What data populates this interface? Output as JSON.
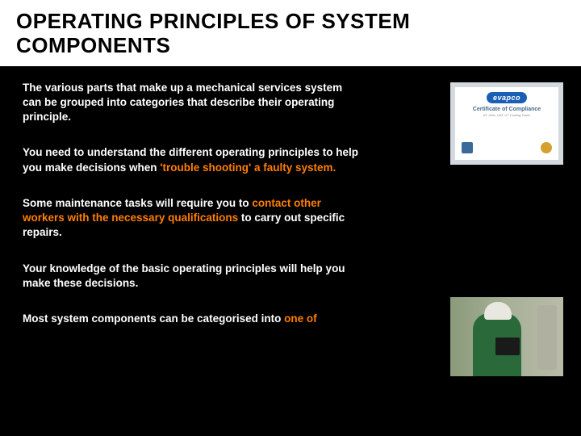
{
  "title": "OPERATING PRINCIPLES OF SYSTEM COMPONENTS",
  "paragraphs": {
    "p1": "The various parts that make up a mechanical services system can be grouped into categories that describe their operating principle.",
    "p2a": "You need to understand the different operating principles to help you make decisions when ",
    "p2b": "'trouble shooting' a faulty system.",
    "p3a": "Some maintenance tasks will require you to ",
    "p3b": "contact other workers with the necessary qualifications ",
    "p3c": "to carry out specific repairs.",
    "p4": " Your knowledge of the basic operating principles will help you make these decisions.",
    "p5a": "Most system components can be categorised into ",
    "p5b": "one of"
  },
  "cert": {
    "logo": "evapco",
    "title": "Certificate of Compliance",
    "sub": "AT, USA, UAT, UT Cooling Tower"
  },
  "colors": {
    "background": "#000000",
    "title_bg": "#ffffff",
    "title_text": "#000000",
    "body_text": "#ffffff",
    "highlight": "#ff7e00"
  },
  "typography": {
    "title_fontsize": 26,
    "body_fontsize": 13.5,
    "font_family": "Arial"
  }
}
